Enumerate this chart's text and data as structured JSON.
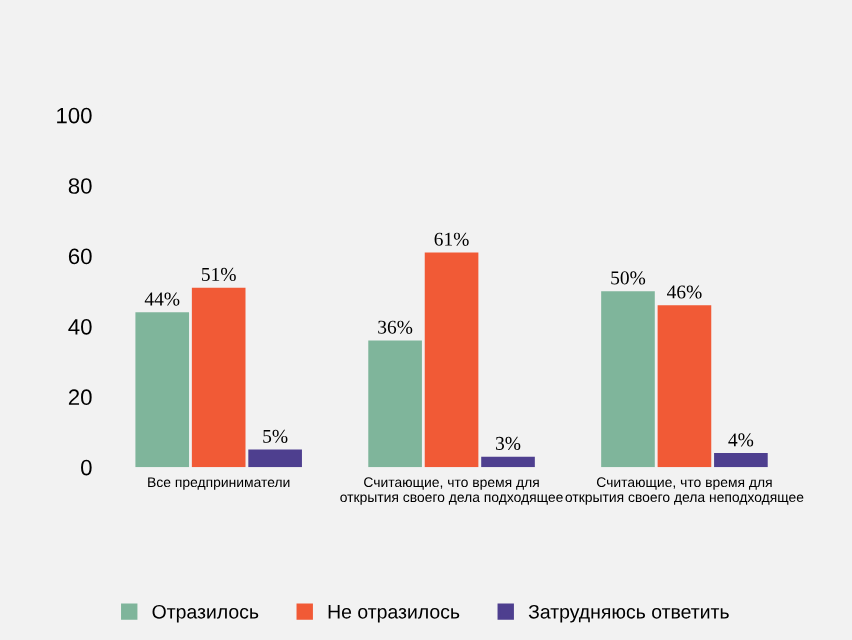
{
  "chart_data": {
    "type": "bar",
    "categories": [
      "Все предприниматели",
      "Считающие, что время для\nоткрытия своего дела подходящее",
      "Считающие, что время для\nоткрытия своего дела неподходящее"
    ],
    "series": [
      {
        "name": "Отразилось",
        "color": "#7fb59b",
        "values": [
          44,
          36,
          50
        ],
        "value_labels": [
          "44%",
          "36%",
          "50%"
        ]
      },
      {
        "name": "Не отразилось",
        "color": "#f15a36",
        "values": [
          51,
          61,
          46
        ],
        "value_labels": [
          "51%",
          "61%",
          "46%"
        ]
      },
      {
        "name": "Затрудняюсь ответить",
        "color": "#4e3f8f",
        "values": [
          5,
          3,
          4
        ],
        "value_labels": [
          "5%",
          "3%",
          "4%"
        ]
      }
    ],
    "ylim": [
      0,
      100
    ],
    "yticks": [
      0,
      20,
      40,
      60,
      80,
      100
    ],
    "grid": false,
    "legend": "bottom"
  }
}
